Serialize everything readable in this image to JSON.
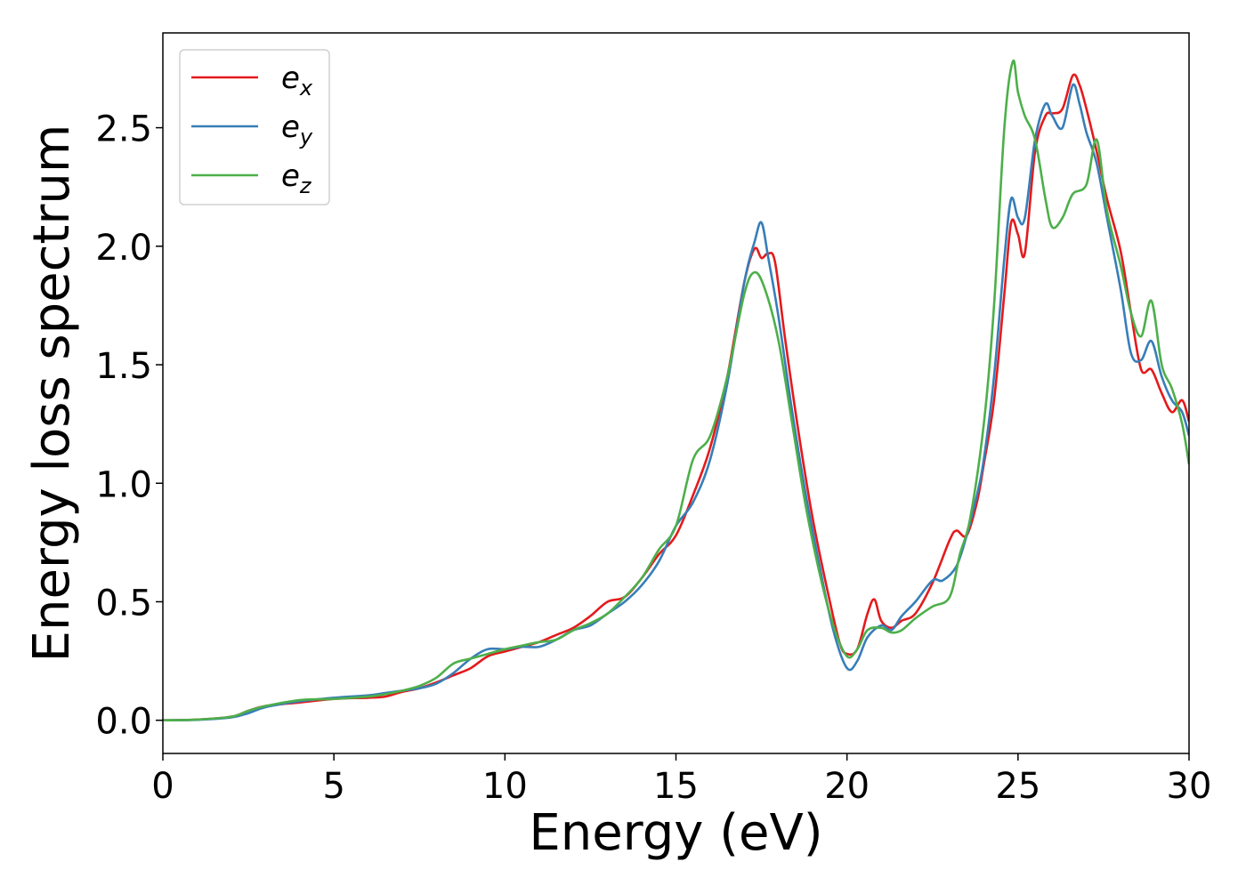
{
  "chart_data": {
    "type": "line",
    "xlabel": "Energy (eV)",
    "ylabel": "Energy loss spectrum",
    "xlim": [
      0,
      30
    ],
    "ylim": [
      -0.14,
      2.9
    ],
    "xticks": [
      0,
      5,
      10,
      15,
      20,
      25,
      30
    ],
    "xtick_labels": [
      "0",
      "5",
      "10",
      "15",
      "20",
      "25",
      "30"
    ],
    "yticks": [
      0.0,
      0.5,
      1.0,
      1.5,
      2.0,
      2.5
    ],
    "ytick_labels": [
      "0.0",
      "0.5",
      "1.0",
      "1.5",
      "2.0",
      "2.5"
    ],
    "grid": false,
    "legend_position": "top-left",
    "series": [
      {
        "name": "e_x",
        "label_base": "e",
        "label_sub": "x",
        "color": "#e41a1c",
        "points": [
          [
            0,
            0
          ],
          [
            1,
            0.003
          ],
          [
            2,
            0.015
          ],
          [
            2.5,
            0.04
          ],
          [
            3,
            0.06
          ],
          [
            4,
            0.075
          ],
          [
            5,
            0.09
          ],
          [
            6,
            0.095
          ],
          [
            6.5,
            0.1
          ],
          [
            7,
            0.12
          ],
          [
            7.5,
            0.135
          ],
          [
            8,
            0.16
          ],
          [
            8.5,
            0.19
          ],
          [
            9,
            0.22
          ],
          [
            9.5,
            0.27
          ],
          [
            10,
            0.29
          ],
          [
            10.5,
            0.31
          ],
          [
            11,
            0.33
          ],
          [
            11.5,
            0.36
          ],
          [
            12,
            0.39
          ],
          [
            12.5,
            0.44
          ],
          [
            13,
            0.5
          ],
          [
            13.5,
            0.52
          ],
          [
            14,
            0.6
          ],
          [
            14.5,
            0.7
          ],
          [
            15,
            0.78
          ],
          [
            15.5,
            0.95
          ],
          [
            16,
            1.15
          ],
          [
            16.5,
            1.45
          ],
          [
            17,
            1.85
          ],
          [
            17.3,
            1.99
          ],
          [
            17.5,
            1.95
          ],
          [
            17.7,
            1.97
          ],
          [
            17.9,
            1.93
          ],
          [
            18.2,
            1.6
          ],
          [
            18.6,
            1.2
          ],
          [
            19,
            0.85
          ],
          [
            19.5,
            0.5
          ],
          [
            19.8,
            0.32
          ],
          [
            20,
            0.28
          ],
          [
            20.3,
            0.3
          ],
          [
            20.6,
            0.45
          ],
          [
            20.8,
            0.51
          ],
          [
            21,
            0.42
          ],
          [
            21.3,
            0.39
          ],
          [
            21.6,
            0.42
          ],
          [
            22,
            0.45
          ],
          [
            22.5,
            0.58
          ],
          [
            23,
            0.76
          ],
          [
            23.2,
            0.8
          ],
          [
            23.5,
            0.78
          ],
          [
            23.8,
            0.92
          ],
          [
            24,
            1.08
          ],
          [
            24.3,
            1.35
          ],
          [
            24.6,
            1.8
          ],
          [
            24.8,
            2.1
          ],
          [
            25,
            2.05
          ],
          [
            25.2,
            1.97
          ],
          [
            25.5,
            2.4
          ],
          [
            25.8,
            2.55
          ],
          [
            26,
            2.56
          ],
          [
            26.3,
            2.58
          ],
          [
            26.6,
            2.72
          ],
          [
            26.8,
            2.68
          ],
          [
            27,
            2.58
          ],
          [
            27.3,
            2.4
          ],
          [
            27.6,
            2.2
          ],
          [
            28,
            1.98
          ],
          [
            28.3,
            1.72
          ],
          [
            28.6,
            1.48
          ],
          [
            28.9,
            1.48
          ],
          [
            29.2,
            1.38
          ],
          [
            29.5,
            1.3
          ],
          [
            29.8,
            1.35
          ],
          [
            30,
            1.26
          ]
        ]
      },
      {
        "name": "e_y",
        "label_base": "e",
        "label_sub": "y",
        "color": "#377eb8",
        "points": [
          [
            0,
            0
          ],
          [
            1,
            0.002
          ],
          [
            2,
            0.012
          ],
          [
            2.5,
            0.03
          ],
          [
            3,
            0.055
          ],
          [
            4,
            0.08
          ],
          [
            5,
            0.095
          ],
          [
            6,
            0.105
          ],
          [
            6.5,
            0.115
          ],
          [
            7,
            0.125
          ],
          [
            7.5,
            0.135
          ],
          [
            8,
            0.155
          ],
          [
            8.5,
            0.2
          ],
          [
            9,
            0.26
          ],
          [
            9.5,
            0.3
          ],
          [
            10,
            0.3
          ],
          [
            10.5,
            0.31
          ],
          [
            11,
            0.31
          ],
          [
            11.5,
            0.34
          ],
          [
            12,
            0.38
          ],
          [
            12.5,
            0.4
          ],
          [
            13,
            0.45
          ],
          [
            13.5,
            0.5
          ],
          [
            14,
            0.57
          ],
          [
            14.5,
            0.67
          ],
          [
            15,
            0.82
          ],
          [
            15.5,
            0.92
          ],
          [
            16,
            1.1
          ],
          [
            16.5,
            1.42
          ],
          [
            17,
            1.85
          ],
          [
            17.3,
            2.02
          ],
          [
            17.5,
            2.1
          ],
          [
            17.7,
            1.95
          ],
          [
            18,
            1.7
          ],
          [
            18.4,
            1.3
          ],
          [
            18.8,
            0.95
          ],
          [
            19.2,
            0.65
          ],
          [
            19.6,
            0.38
          ],
          [
            20,
            0.22
          ],
          [
            20.3,
            0.25
          ],
          [
            20.6,
            0.35
          ],
          [
            21,
            0.4
          ],
          [
            21.3,
            0.38
          ],
          [
            21.6,
            0.44
          ],
          [
            22,
            0.5
          ],
          [
            22.5,
            0.59
          ],
          [
            22.8,
            0.59
          ],
          [
            23.2,
            0.65
          ],
          [
            23.5,
            0.78
          ],
          [
            23.8,
            0.95
          ],
          [
            24,
            1.1
          ],
          [
            24.3,
            1.45
          ],
          [
            24.6,
            1.95
          ],
          [
            24.8,
            2.2
          ],
          [
            25,
            2.12
          ],
          [
            25.2,
            2.12
          ],
          [
            25.5,
            2.45
          ],
          [
            25.8,
            2.6
          ],
          [
            26,
            2.55
          ],
          [
            26.3,
            2.5
          ],
          [
            26.6,
            2.68
          ],
          [
            26.8,
            2.6
          ],
          [
            27,
            2.48
          ],
          [
            27.3,
            2.35
          ],
          [
            27.6,
            2.12
          ],
          [
            28,
            1.82
          ],
          [
            28.3,
            1.55
          ],
          [
            28.6,
            1.52
          ],
          [
            28.9,
            1.6
          ],
          [
            29.2,
            1.45
          ],
          [
            29.5,
            1.35
          ],
          [
            29.8,
            1.3
          ],
          [
            30,
            1.2
          ]
        ]
      },
      {
        "name": "e_z",
        "label_base": "e",
        "label_sub": "z",
        "color": "#4daf4a",
        "points": [
          [
            0,
            0
          ],
          [
            1,
            0.003
          ],
          [
            2,
            0.015
          ],
          [
            2.5,
            0.04
          ],
          [
            3,
            0.06
          ],
          [
            4,
            0.085
          ],
          [
            5,
            0.09
          ],
          [
            6,
            0.1
          ],
          [
            6.5,
            0.11
          ],
          [
            7,
            0.125
          ],
          [
            7.5,
            0.145
          ],
          [
            8,
            0.18
          ],
          [
            8.5,
            0.24
          ],
          [
            9,
            0.26
          ],
          [
            9.5,
            0.28
          ],
          [
            10,
            0.3
          ],
          [
            10.5,
            0.315
          ],
          [
            11,
            0.33
          ],
          [
            11.5,
            0.34
          ],
          [
            12,
            0.38
          ],
          [
            12.5,
            0.41
          ],
          [
            13,
            0.45
          ],
          [
            13.5,
            0.52
          ],
          [
            14,
            0.6
          ],
          [
            14.5,
            0.72
          ],
          [
            15,
            0.82
          ],
          [
            15.5,
            1.1
          ],
          [
            16,
            1.2
          ],
          [
            16.5,
            1.45
          ],
          [
            17,
            1.8
          ],
          [
            17.3,
            1.89
          ],
          [
            17.6,
            1.82
          ],
          [
            18,
            1.6
          ],
          [
            18.4,
            1.25
          ],
          [
            18.8,
            0.9
          ],
          [
            19.2,
            0.62
          ],
          [
            19.6,
            0.4
          ],
          [
            20,
            0.27
          ],
          [
            20.3,
            0.3
          ],
          [
            20.6,
            0.38
          ],
          [
            21,
            0.39
          ],
          [
            21.3,
            0.37
          ],
          [
            21.6,
            0.38
          ],
          [
            22,
            0.43
          ],
          [
            22.5,
            0.48
          ],
          [
            23,
            0.52
          ],
          [
            23.3,
            0.7
          ],
          [
            23.6,
            0.85
          ],
          [
            24,
            1.25
          ],
          [
            24.3,
            1.75
          ],
          [
            24.6,
            2.5
          ],
          [
            24.85,
            2.78
          ],
          [
            25,
            2.65
          ],
          [
            25.2,
            2.55
          ],
          [
            25.5,
            2.45
          ],
          [
            25.8,
            2.2
          ],
          [
            26,
            2.08
          ],
          [
            26.3,
            2.12
          ],
          [
            26.6,
            2.22
          ],
          [
            27,
            2.26
          ],
          [
            27.3,
            2.45
          ],
          [
            27.6,
            2.15
          ],
          [
            28,
            1.92
          ],
          [
            28.3,
            1.72
          ],
          [
            28.6,
            1.62
          ],
          [
            28.9,
            1.77
          ],
          [
            29.2,
            1.5
          ],
          [
            29.5,
            1.4
          ],
          [
            29.8,
            1.25
          ],
          [
            30,
            1.08
          ]
        ]
      }
    ]
  }
}
